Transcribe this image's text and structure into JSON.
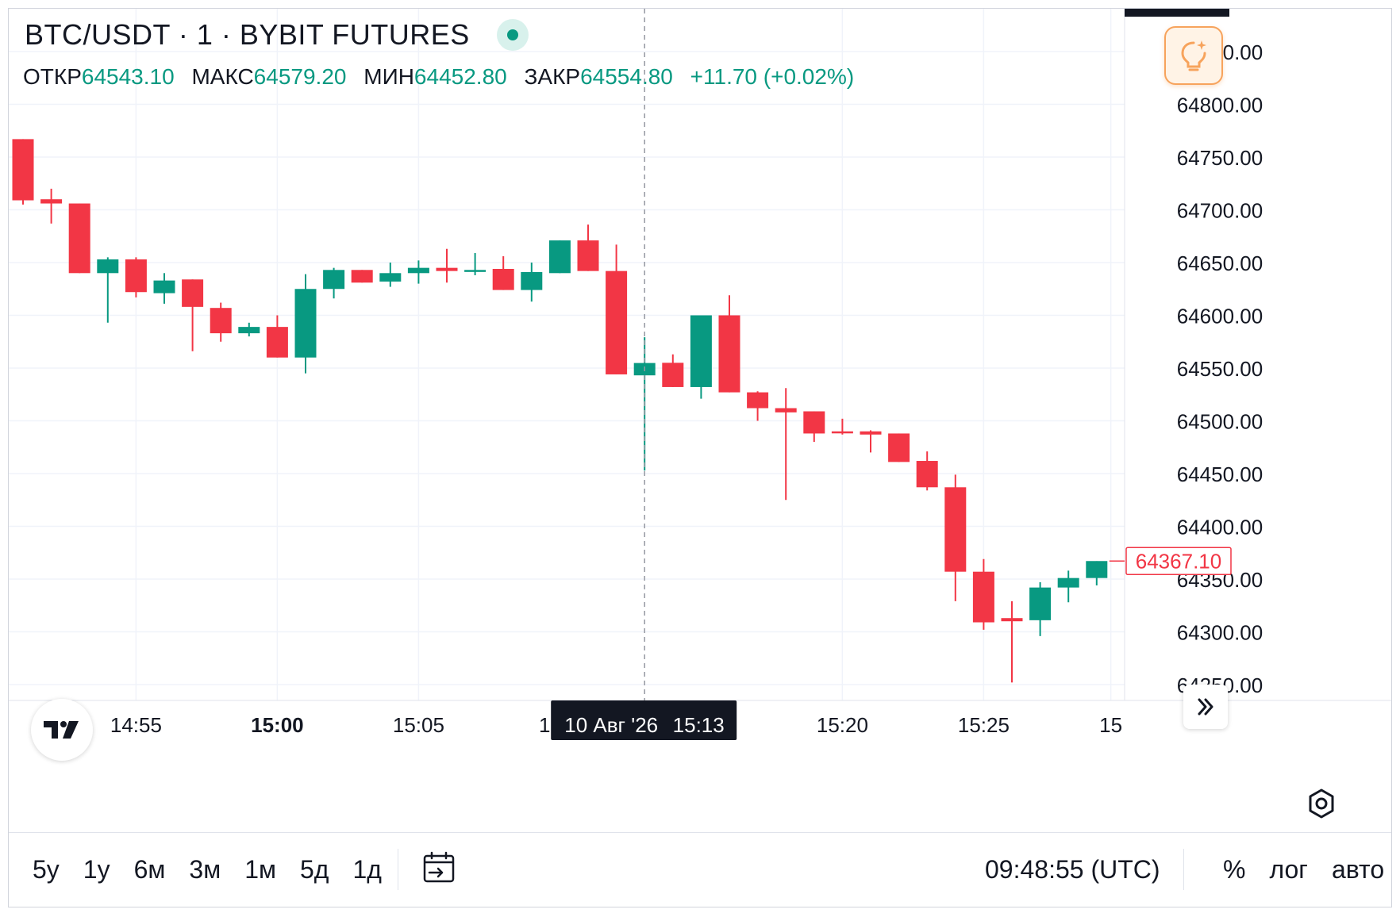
{
  "header": {
    "title": "BTC/USDT · 1 · BYBIT FUTURES",
    "ohlc": {
      "open_label": "ОТКР",
      "open": "64543.10",
      "high_label": "МАКС",
      "high": "64579.20",
      "low_label": "МИН",
      "low": "64452.80",
      "close_label": "ЗАКР",
      "close": "64554.80",
      "change": "+11.70 (+0.02%)"
    }
  },
  "crosshair": {
    "date_label": "10 Авг '26",
    "time_label": "15:13",
    "hidden_tick": "15"
  },
  "last_price": {
    "label": "64367.10",
    "value": 64367.1
  },
  "bottom_bar": {
    "ranges": [
      "5у",
      "1у",
      "6м",
      "3м",
      "1м",
      "5д",
      "1д"
    ],
    "clock": "09:48:55 (UTC)",
    "percent": "%",
    "log": "лог",
    "auto": "авто"
  },
  "colors": {
    "up": "#089981",
    "down": "#f23645",
    "grid": "#f0f3fa",
    "accent": "#f7a35c"
  },
  "icons": [
    "idea-icon",
    "tradingview-logo-icon",
    "scroll-right-icon",
    "calendar-goto-icon",
    "settings-icon"
  ],
  "chart_data": {
    "type": "candlestick",
    "y_ticks": [
      "64850.00",
      "64800.00",
      "64750.00",
      "64700.00",
      "64650.00",
      "64600.00",
      "64550.00",
      "64500.00",
      "64450.00",
      "64400.00",
      "64350.00",
      "64300.00",
      "64250.00"
    ],
    "ylim": [
      64235,
      64895
    ],
    "x_ticks": [
      {
        "label": "14:55",
        "t": 4,
        "bold": false
      },
      {
        "label": "15:00",
        "t": 9,
        "bold": true
      },
      {
        "label": "15:05",
        "t": 14,
        "bold": false
      },
      {
        "label": "15:20",
        "t": 29,
        "bold": false
      },
      {
        "label": "15:25",
        "t": 34,
        "bold": false
      },
      {
        "label": "15",
        "t": 38.5,
        "bold": false
      }
    ],
    "grid": true,
    "series": [
      {
        "t": 0,
        "o": 64767,
        "h": 64767,
        "l": 64705,
        "c": 64709
      },
      {
        "t": 1,
        "o": 64710,
        "h": 64720,
        "l": 64687,
        "c": 64706
      },
      {
        "t": 2,
        "o": 64706,
        "h": 64706,
        "l": 64640,
        "c": 64640
      },
      {
        "t": 3,
        "o": 64640,
        "h": 64655,
        "l": 64593,
        "c": 64653
      },
      {
        "t": 4,
        "o": 64653,
        "h": 64655,
        "l": 64617,
        "c": 64622
      },
      {
        "t": 5,
        "o": 64621,
        "h": 64640,
        "l": 64611,
        "c": 64633
      },
      {
        "t": 6,
        "o": 64634,
        "h": 64634,
        "l": 64566,
        "c": 64608
      },
      {
        "t": 7,
        "o": 64607,
        "h": 64612,
        "l": 64575,
        "c": 64583
      },
      {
        "t": 8,
        "o": 64583,
        "h": 64593,
        "l": 64580,
        "c": 64589
      },
      {
        "t": 9,
        "o": 64589,
        "h": 64600,
        "l": 64560,
        "c": 64560
      },
      {
        "t": 10,
        "o": 64560,
        "h": 64639,
        "l": 64545,
        "c": 64625
      },
      {
        "t": 11,
        "o": 64625,
        "h": 64645,
        "l": 64616,
        "c": 64643
      },
      {
        "t": 12,
        "o": 64643,
        "h": 64643,
        "l": 64631,
        "c": 64631
      },
      {
        "t": 13,
        "o": 64632,
        "h": 64650,
        "l": 64627,
        "c": 64640
      },
      {
        "t": 14,
        "o": 64640,
        "h": 64652,
        "l": 64630,
        "c": 64645
      },
      {
        "t": 15,
        "o": 64645,
        "h": 64663,
        "l": 64631,
        "c": 64642
      },
      {
        "t": 16,
        "o": 64642,
        "h": 64659,
        "l": 64638,
        "c": 64643
      },
      {
        "t": 17,
        "o": 64644,
        "h": 64656,
        "l": 64624,
        "c": 64624
      },
      {
        "t": 18,
        "o": 64624,
        "h": 64650,
        "l": 64613,
        "c": 64641
      },
      {
        "t": 19,
        "o": 64640,
        "h": 64671,
        "l": 64640,
        "c": 64671
      },
      {
        "t": 20,
        "o": 64671,
        "h": 64686,
        "l": 64642,
        "c": 64642
      },
      {
        "t": 21,
        "o": 64642,
        "h": 64667,
        "l": 64544,
        "c": 64544
      },
      {
        "t": 22,
        "o": 64543.1,
        "h": 64579.2,
        "l": 64452.8,
        "c": 64554.8
      },
      {
        "t": 23,
        "o": 64555,
        "h": 64563,
        "l": 64532,
        "c": 64532
      },
      {
        "t": 24,
        "o": 64532,
        "h": 64600,
        "l": 64521,
        "c": 64600
      },
      {
        "t": 25,
        "o": 64600,
        "h": 64619,
        "l": 64527,
        "c": 64527
      },
      {
        "t": 26,
        "o": 64527,
        "h": 64528,
        "l": 64500,
        "c": 64512
      },
      {
        "t": 27,
        "o": 64512,
        "h": 64531,
        "l": 64425,
        "c": 64508
      },
      {
        "t": 28,
        "o": 64509,
        "h": 64509,
        "l": 64480,
        "c": 64488
      },
      {
        "t": 29,
        "o": 64490,
        "h": 64502,
        "l": 64487,
        "c": 64489
      },
      {
        "t": 30,
        "o": 64490,
        "h": 64491,
        "l": 64470,
        "c": 64487
      },
      {
        "t": 31,
        "o": 64488,
        "h": 64488,
        "l": 64461,
        "c": 64461
      },
      {
        "t": 32,
        "o": 64462,
        "h": 64471,
        "l": 64434,
        "c": 64437
      },
      {
        "t": 33,
        "o": 64437,
        "h": 64449,
        "l": 64329,
        "c": 64357
      },
      {
        "t": 34,
        "o": 64357,
        "h": 64369,
        "l": 64302,
        "c": 64309
      },
      {
        "t": 35,
        "o": 64313,
        "h": 64329,
        "l": 64252,
        "c": 64310
      },
      {
        "t": 36,
        "o": 64311,
        "h": 64347,
        "l": 64296,
        "c": 64342
      },
      {
        "t": 37,
        "o": 64342,
        "h": 64358,
        "l": 64328,
        "c": 64351
      },
      {
        "t": 38,
        "o": 64351,
        "h": 64367,
        "l": 64344,
        "c": 64367.1
      }
    ]
  }
}
